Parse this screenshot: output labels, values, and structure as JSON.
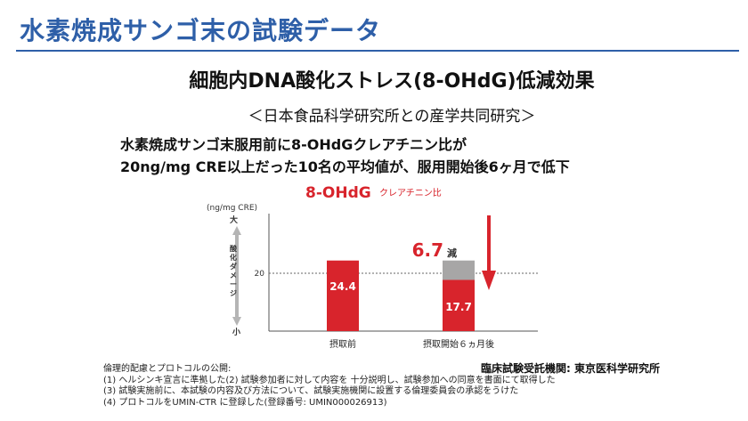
{
  "header": {
    "title": "水素焼成サンゴ末の試験データ"
  },
  "main": {
    "headline": "細胞内DNA酸化ストレス(8-OHdG)低減効果",
    "subhead": "＜日本食品科学研究所との産学共同研究＞",
    "description_lines": [
      "水素焼成サンゴ末服用前に8-OHdGクレアチニン比が",
      "20ng/mg CRE以上だった10名の平均値が、服用開始後6ヶ月で低下"
    ]
  },
  "chart_data": {
    "type": "bar",
    "title_main": "8-OHdG",
    "title_sub": "クレアチニン比",
    "unit_label": "(ng/mg CRE)",
    "ylabel": "酸化ダメージ",
    "y_top_label": "大",
    "y_bottom_label": "小",
    "ylim": [
      0,
      40
    ],
    "reference_line": {
      "value": 20,
      "label": "20"
    },
    "categories": [
      "摂取前",
      "摂取開始６ヵ月後"
    ],
    "values": [
      24.4,
      17.7
    ],
    "value_labels": [
      "24.4",
      "17.7"
    ],
    "reduction": {
      "value": 6.7,
      "label": "6.7",
      "suffix": "減"
    },
    "colors": {
      "bar": "#d8242c",
      "reduction": "#a7a6a6",
      "axis": "#555555",
      "title": "#d8242c",
      "arrow": "#d8242c",
      "gauge": "#b5b5b5"
    }
  },
  "footer": {
    "credit": "臨床試験受託機関: 東京医科学研究所",
    "ethics_title": "倫理的配慮とプロトコルの公開:",
    "ethics_items": [
      "(1) ヘルシンキ宣言に準拠した(2) 試験参加者に対して内容を 十分説明し、試験参加への同意を書面にて取得した",
      "(3) 試験実施前に、本試験の内容及び方法について、試験実施機関に設置する倫理委員会の承認をうけた",
      "(4) プロトコルをUMIN-CTR に登録した(登録番号: UMIN000026913)"
    ]
  }
}
